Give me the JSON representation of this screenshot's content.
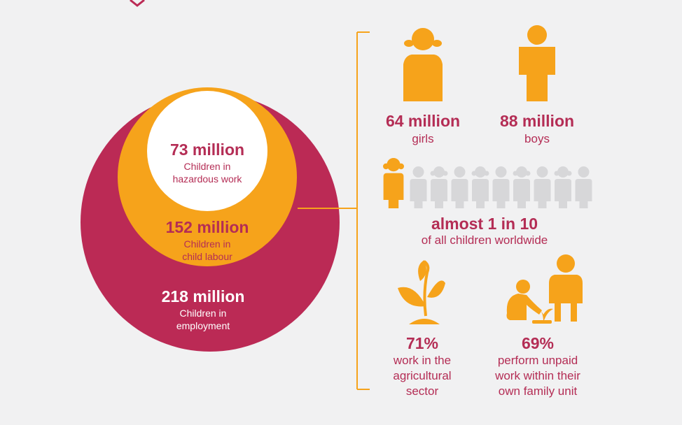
{
  "colors": {
    "background": "#f1f1f2",
    "crimson": "#bb2a55",
    "orange": "#f6a31b",
    "white": "#ffffff",
    "grey_figure": "#d7d7d9",
    "text_crimson": "#b42d55"
  },
  "circles": {
    "hazardous": {
      "value": "73 million",
      "label_line1": "Children in",
      "label_line2": "hazardous work"
    },
    "labour": {
      "value": "152 million",
      "label_line1": "Children in",
      "label_line2": "child labour"
    },
    "employment": {
      "value": "218 million",
      "label_line1": "Children in",
      "label_line2": "employment"
    }
  },
  "gender": {
    "girls": {
      "value": "64 million",
      "label": "girls",
      "icon": "girl-icon"
    },
    "boys": {
      "value": "88 million",
      "label": "boys",
      "icon": "boy-icon"
    }
  },
  "ratio": {
    "headline": "almost 1 in 10",
    "subtext": "of all children worldwide",
    "highlighted_count": 1,
    "total_count": 10
  },
  "sectors": {
    "agriculture": {
      "value": "71%",
      "line1": "work in the",
      "line2": "agricultural",
      "line3": "sector",
      "icon": "plant-icon"
    },
    "family": {
      "value": "69%",
      "line1": "perform unpaid",
      "line2": "work within their",
      "line3": "own family unit",
      "icon": "family-work-icon"
    }
  }
}
